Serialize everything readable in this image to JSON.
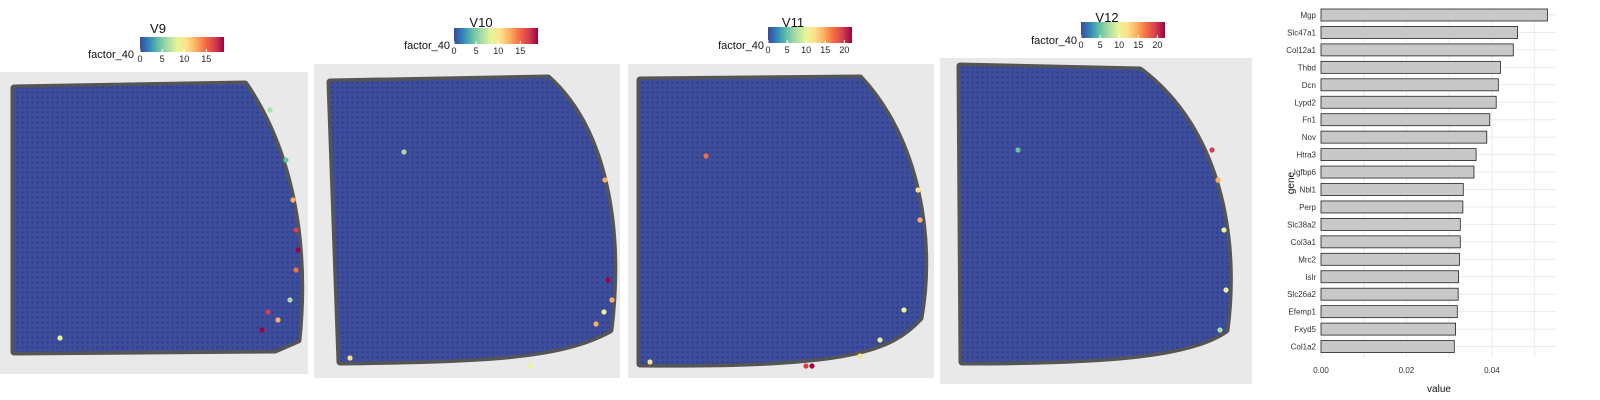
{
  "colorscale_stops": [
    "#3b4a9b",
    "#3288bd",
    "#66c2a5",
    "#abdda4",
    "#e6f598",
    "#fee08b",
    "#fdae61",
    "#f46d43",
    "#d53e4f",
    "#9e0142"
  ],
  "slice_color": "#3d4f9c",
  "slice_dot_color": "#35408f",
  "bar_fill": "#c8c8c8",
  "chart_data": [
    {
      "type": "heatmap",
      "title": "V9",
      "legend_label": "factor_40",
      "legend_ticks": [
        "0",
        "5",
        "10",
        "15"
      ],
      "legend_range": [
        0,
        19
      ]
    },
    {
      "type": "heatmap",
      "title": "V10",
      "legend_label": "factor_40",
      "legend_ticks": [
        "0",
        "5",
        "10",
        "15"
      ],
      "legend_range": [
        0,
        19
      ]
    },
    {
      "type": "heatmap",
      "title": "V11",
      "legend_label": "factor_40",
      "legend_ticks": [
        "0",
        "5",
        "10",
        "15",
        "20"
      ],
      "legend_range": [
        0,
        22
      ]
    },
    {
      "type": "heatmap",
      "title": "V12",
      "legend_label": "factor_40",
      "legend_ticks": [
        "0",
        "5",
        "10",
        "15",
        "20"
      ],
      "legend_range": [
        0,
        22
      ]
    },
    {
      "type": "bar",
      "orientation": "horizontal",
      "categories": [
        "Mgp",
        "Slc47a1",
        "Col12a1",
        "Thbd",
        "Dcn",
        "Lypd2",
        "Fn1",
        "Nov",
        "Htra3",
        "Igfbp6",
        "Nbl1",
        "Perp",
        "Slc38a2",
        "Col3a1",
        "Mrc2",
        "Islr",
        "Slc26a2",
        "Efemp1",
        "Fxyd5",
        "Col1a2"
      ],
      "values": [
        0.053,
        0.046,
        0.045,
        0.042,
        0.0415,
        0.041,
        0.0395,
        0.0388,
        0.0363,
        0.0358,
        0.0333,
        0.0332,
        0.0326,
        0.0326,
        0.0324,
        0.0322,
        0.0321,
        0.0319,
        0.0315,
        0.0312
      ],
      "xlabel": "value",
      "ylabel": "gene",
      "xticks": [
        "0.00",
        "0.02",
        "0.04"
      ],
      "xlim": [
        0,
        0.055
      ],
      "grid": true
    }
  ]
}
